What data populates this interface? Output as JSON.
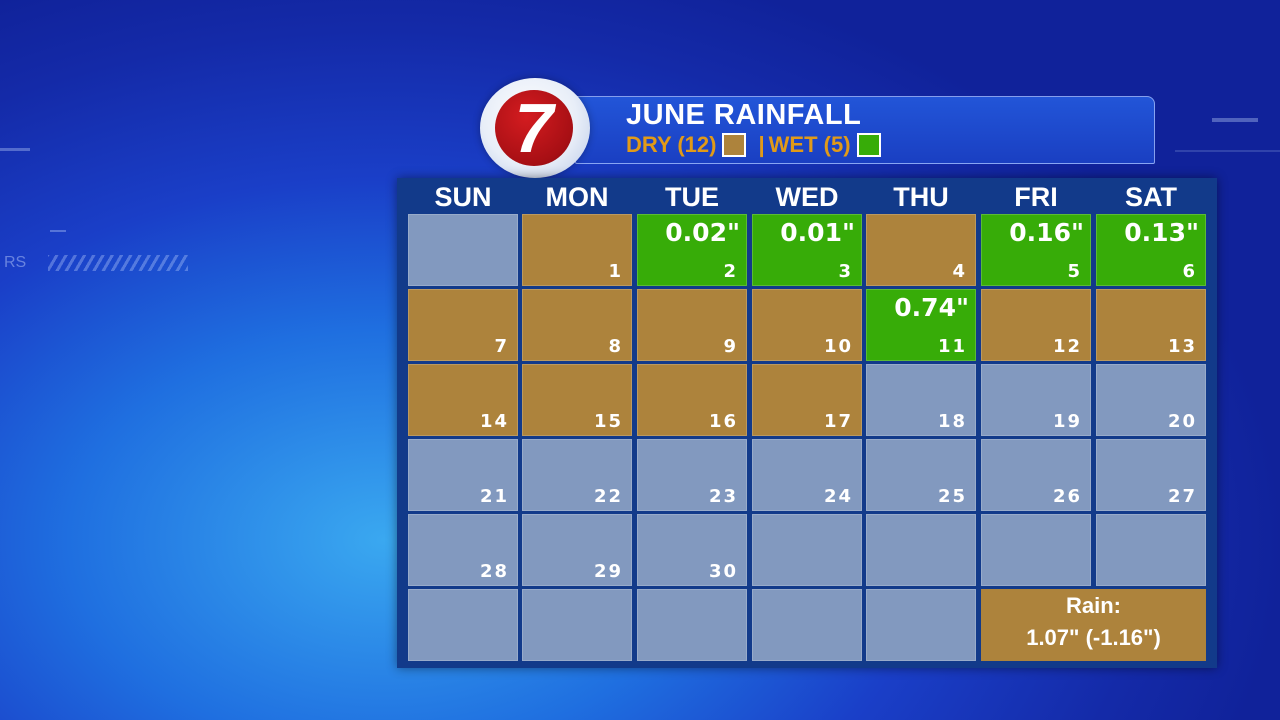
{
  "header": {
    "logo_text": "7",
    "title": "JUNE RAINFALL",
    "dry_label": "DRY (12)",
    "separator": "|",
    "wet_label": "WET (5)",
    "dry_color": "#ad833c",
    "wet_color": "#37ac08"
  },
  "background": {
    "hud_text": "RS"
  },
  "calendar": {
    "days_of_week": [
      "SUN",
      "MON",
      "TUE",
      "WED",
      "THU",
      "FRI",
      "SAT"
    ],
    "cells": [
      {
        "day": "",
        "amount": "",
        "status": "empty"
      },
      {
        "day": "1",
        "amount": "",
        "status": "dry"
      },
      {
        "day": "2",
        "amount": "0.02\"",
        "status": "wet"
      },
      {
        "day": "3",
        "amount": "0.01\"",
        "status": "wet"
      },
      {
        "day": "4",
        "amount": "",
        "status": "dry"
      },
      {
        "day": "5",
        "amount": "0.16\"",
        "status": "wet"
      },
      {
        "day": "6",
        "amount": "0.13\"",
        "status": "wet"
      },
      {
        "day": "7",
        "amount": "",
        "status": "dry"
      },
      {
        "day": "8",
        "amount": "",
        "status": "dry"
      },
      {
        "day": "9",
        "amount": "",
        "status": "dry"
      },
      {
        "day": "10",
        "amount": "",
        "status": "dry"
      },
      {
        "day": "11",
        "amount": "0.74\"",
        "status": "wet"
      },
      {
        "day": "12",
        "amount": "",
        "status": "dry"
      },
      {
        "day": "13",
        "amount": "",
        "status": "dry"
      },
      {
        "day": "14",
        "amount": "",
        "status": "dry"
      },
      {
        "day": "15",
        "amount": "",
        "status": "dry"
      },
      {
        "day": "16",
        "amount": "",
        "status": "dry"
      },
      {
        "day": "17",
        "amount": "",
        "status": "dry"
      },
      {
        "day": "18",
        "amount": "",
        "status": "empty"
      },
      {
        "day": "19",
        "amount": "",
        "status": "empty"
      },
      {
        "day": "20",
        "amount": "",
        "status": "empty"
      },
      {
        "day": "21",
        "amount": "",
        "status": "empty"
      },
      {
        "day": "22",
        "amount": "",
        "status": "empty"
      },
      {
        "day": "23",
        "amount": "",
        "status": "empty"
      },
      {
        "day": "24",
        "amount": "",
        "status": "empty"
      },
      {
        "day": "25",
        "amount": "",
        "status": "empty"
      },
      {
        "day": "26",
        "amount": "",
        "status": "empty"
      },
      {
        "day": "27",
        "amount": "",
        "status": "empty"
      },
      {
        "day": "28",
        "amount": "",
        "status": "empty"
      },
      {
        "day": "29",
        "amount": "",
        "status": "empty"
      },
      {
        "day": "30",
        "amount": "",
        "status": "empty"
      },
      {
        "day": "",
        "amount": "",
        "status": "empty"
      },
      {
        "day": "",
        "amount": "",
        "status": "empty"
      },
      {
        "day": "",
        "amount": "",
        "status": "empty"
      },
      {
        "day": "",
        "amount": "",
        "status": "empty"
      },
      {
        "day": "",
        "amount": "",
        "status": "empty"
      },
      {
        "day": "",
        "amount": "",
        "status": "empty"
      },
      {
        "day": "",
        "amount": "",
        "status": "empty"
      },
      {
        "day": "",
        "amount": "",
        "status": "empty"
      },
      {
        "day": "",
        "amount": "",
        "status": "empty"
      },
      {
        "day": "",
        "amount": "",
        "status": "empty"
      }
    ],
    "summary": {
      "label": "Rain:",
      "value": "1.07\" (-1.16\")"
    }
  }
}
